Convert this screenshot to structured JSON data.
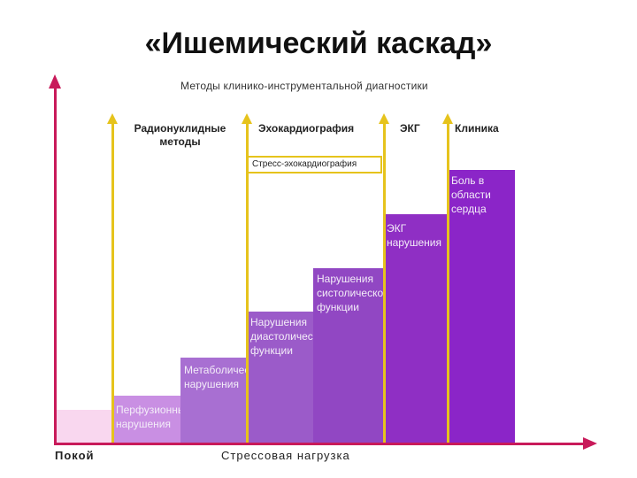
{
  "title": "«Ишемический каскад»",
  "subtitle": "Методы клинико-инструментальной диагностики",
  "methods": {
    "radionuclide": "Радионуклидные методы",
    "echo": "Эхокардиография",
    "stress_echo": "Стресс-эхокардиография",
    "ecg": "ЭКГ",
    "clinic": "Клиника"
  },
  "steps": [
    {
      "label": "Перфузионные нарушения",
      "color": "#c98fe3",
      "level": 1
    },
    {
      "label": "Метаболические нарушения",
      "color": "#a86fd2",
      "level": 2
    },
    {
      "label": "Нарушения диастолической функции",
      "color": "#9b5bc9",
      "level": 3
    },
    {
      "label": "Нарушения систолической функции",
      "color": "#9147c3",
      "level": 4
    },
    {
      "label": "ЭКГ нарушения",
      "color": "#8f2fc4",
      "level": 5
    },
    {
      "label": "Боль в области сердца",
      "color": "#8b25c8",
      "level": 6
    }
  ],
  "axes": {
    "rest": "Покой",
    "stress_load": "Стрессовая нагрузка"
  },
  "colors": {
    "axis": "#c81a5a",
    "method_lines": "#e6c31c",
    "rest_block": "#f9d7ef"
  }
}
